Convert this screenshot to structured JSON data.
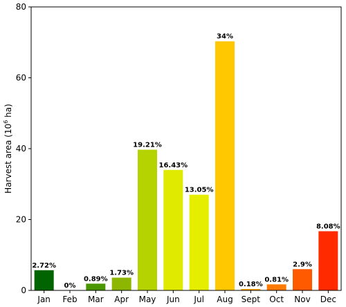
{
  "chart_data": {
    "type": "bar",
    "title": "",
    "xlabel": "",
    "ylabel": {
      "prefix": "Harvest area (10",
      "superscript": "6",
      "suffix": " ha)"
    },
    "ylim": [
      0,
      80
    ],
    "yticks": [
      "0",
      "20",
      "40",
      "60",
      "80"
    ],
    "grid": false,
    "categories": [
      "Jan",
      "Feb",
      "Mar",
      "Apr",
      "May",
      "Jun",
      "Jul",
      "Aug",
      "Sept",
      "Oct",
      "Nov",
      "Dec"
    ],
    "values": [
      5.7,
      0.0,
      1.9,
      3.6,
      39.7,
      34.0,
      27.0,
      70.3,
      0.4,
      1.7,
      6.0,
      16.7
    ],
    "data_labels": [
      "2.72%",
      "0%",
      "0.89%",
      "1.73%",
      "19.21%",
      "16.43%",
      "13.05%",
      "34%",
      "0.18%",
      "0.81%",
      "2.9%",
      "8.08%"
    ],
    "colors": [
      "#006400",
      "#2a7a00",
      "#4a9600",
      "#8db600",
      "#b5d300",
      "#e0ea00",
      "#e6ee00",
      "#ffc800",
      "#ff9f00",
      "#ff7a00",
      "#ff5a00",
      "#ff2a00"
    ]
  }
}
